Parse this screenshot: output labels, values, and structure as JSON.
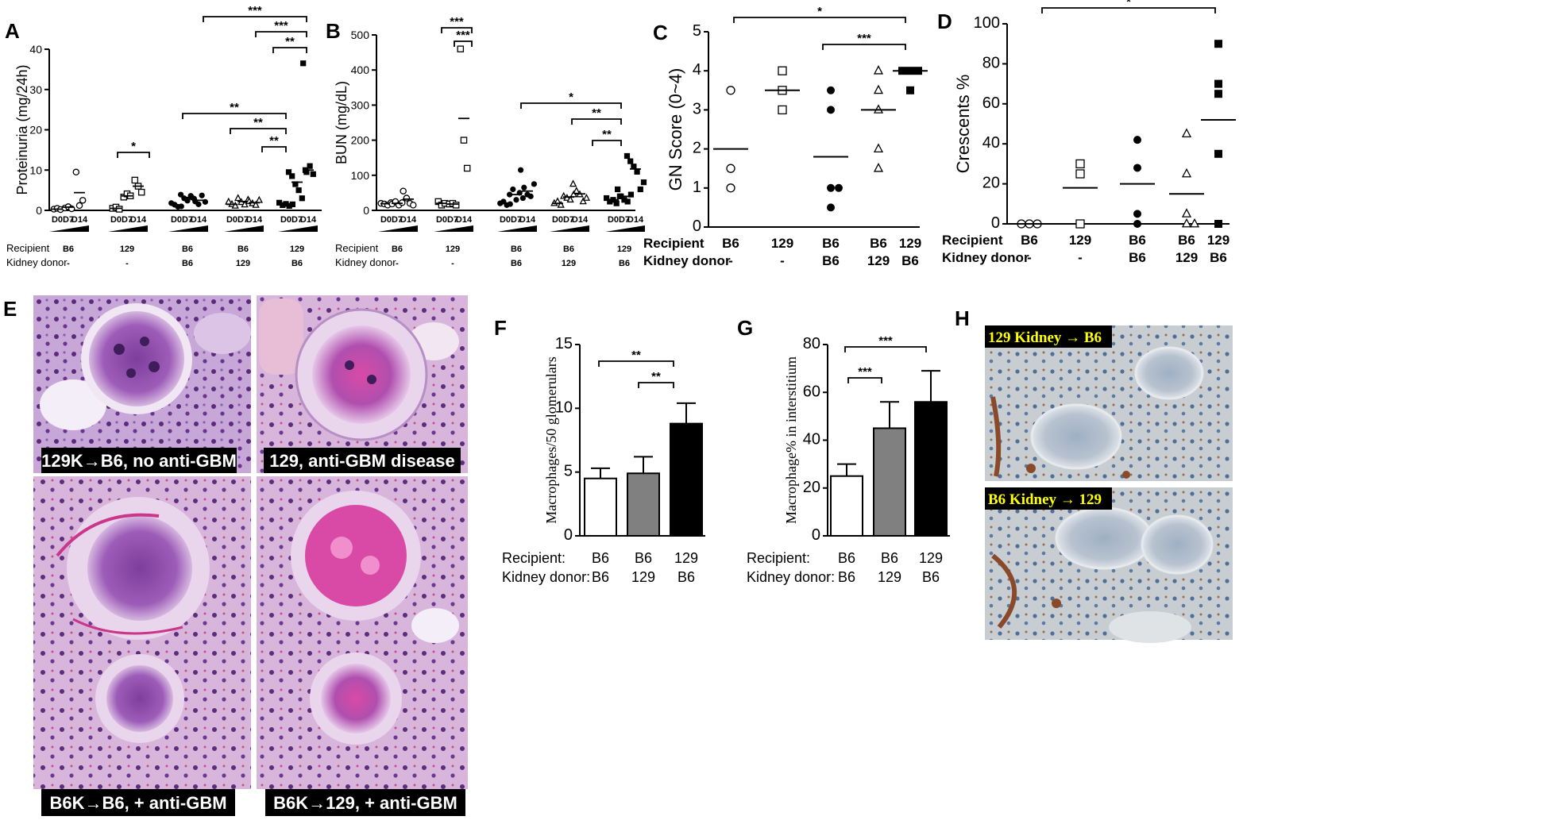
{
  "panel_labels": [
    "A",
    "B",
    "C",
    "D",
    "E",
    "F",
    "G",
    "H"
  ],
  "day_labels": [
    "D0",
    "D7",
    "D14"
  ],
  "row_labels": {
    "recipient": "Recipient",
    "donor": "Kidney donor",
    "recipient_colon": "Recipient:",
    "donor_colon": "Kidney donor:"
  },
  "groups_A_B": [
    {
      "recipient": "B6",
      "donor": "-"
    },
    {
      "recipient": "129",
      "donor": "-"
    },
    {
      "recipient": "B6",
      "donor": "B6"
    },
    {
      "recipient": "B6",
      "donor": "129"
    },
    {
      "recipient": "129",
      "donor": "B6"
    }
  ],
  "groups_C_D": [
    {
      "recipient": "B6",
      "donor": "-"
    },
    {
      "recipient": "129",
      "donor": "-"
    },
    {
      "recipient": "B6",
      "donor": "B6"
    },
    {
      "recipient": "B6",
      "donor": "129"
    },
    {
      "recipient": "129",
      "donor": "B6"
    }
  ],
  "groups_F_G": [
    {
      "recipient": "B6",
      "donor": "B6"
    },
    {
      "recipient": "B6",
      "donor": "129"
    },
    {
      "recipient": "129",
      "donor": "B6"
    }
  ],
  "sig": {
    "one": "*",
    "two": "**",
    "three": "***"
  },
  "histology_captions": [
    "129K→B6, no anti-GBM",
    "129, anti-GBM disease",
    "B6K→B6, + anti-GBM",
    "B6K→129, + anti-GBM"
  ],
  "ihc_captions": [
    "129 Kidney → B6",
    "B6 Kidney → 129"
  ],
  "chart_data": [
    {
      "panel": "A",
      "type": "scatter",
      "ylabel": "Proteinuria (mg/24h)",
      "ylim": [
        0,
        40
      ],
      "yticks": [
        0,
        10,
        20,
        30,
        40
      ],
      "points": [
        [
          [
            0.3,
            0.5,
            0.2
          ],
          [
            0.6,
            0.9,
            0.4
          ],
          [
            9.5,
            1.2,
            2.5
          ]
        ],
        [
          [
            0.5,
            0.8,
            0.3
          ],
          [
            3.3,
            4.1,
            3.6
          ],
          [
            7.5,
            6,
            4.5
          ]
        ],
        [
          [
            1.8,
            1.4,
            0.9,
            1.0
          ],
          [
            3.9,
            3.0,
            2.4,
            3.6,
            2.9
          ],
          [
            3.2,
            2.2,
            1.5,
            3.7,
            2.1
          ]
        ],
        [
          [
            2.1,
            1.5,
            1.1
          ],
          [
            3.0,
            2.0,
            1.4,
            2.6
          ],
          [
            2.2,
            1.7,
            1.3,
            2.5
          ]
        ],
        [
          [
            1.9,
            1.3,
            1.6,
            1.1,
            1.5
          ],
          [
            9.5,
            8.5,
            6.5,
            5.0,
            3.0,
            10.0
          ],
          [
            36.5,
            9.5,
            11.0,
            9.0
          ]
        ]
      ],
      "means": [
        [
          0.3,
          0.8,
          4.4
        ],
        [
          0.5,
          3.6,
          6.0
        ],
        [
          1.3,
          3.2,
          2.5
        ],
        [
          1.5,
          2.2,
          1.9
        ],
        [
          1.5,
          7.0,
          10.0
        ]
      ]
    },
    {
      "panel": "B",
      "type": "scatter",
      "ylabel": "BUN (mg/dL)",
      "ylim": [
        0,
        500
      ],
      "yticks": [
        0,
        100,
        200,
        300,
        400,
        500
      ],
      "points": [
        [
          [
            20,
            18,
            15,
            22
          ],
          [
            18,
            25,
            15,
            22
          ],
          [
            55,
            35,
            20,
            15
          ]
        ],
        [
          [
            25,
            15,
            20
          ],
          [
            18,
            20,
            15
          ],
          [
            460,
            200,
            120
          ]
        ],
        [
          [
            20,
            25,
            15,
            18
          ],
          [
            45,
            60,
            30,
            50,
            35
          ],
          [
            115,
            65,
            45,
            40,
            75
          ]
        ],
        [
          [
            20,
            25,
            15
          ],
          [
            40,
            35,
            30,
            45
          ],
          [
            75,
            55,
            45,
            25,
            35
          ]
        ],
        [
          [
            35,
            25,
            30,
            20,
            40
          ],
          [
            60,
            40,
            30,
            25,
            45
          ],
          [
            155,
            140,
            125,
            110,
            60,
            80
          ]
        ]
      ],
      "means": [
        [
          19,
          20,
          32
        ],
        [
          20,
          18,
          262
        ],
        [
          20,
          45,
          55
        ],
        [
          20,
          38,
          47
        ],
        [
          30,
          40,
          118
        ]
      ]
    },
    {
      "panel": "C",
      "type": "scatter",
      "ylabel": "GN Score (0~4)",
      "ylim": [
        0,
        5
      ],
      "yticks": [
        0,
        1,
        2,
        3,
        4,
        5
      ],
      "points": [
        [
          3.5,
          1.5,
          1.0
        ],
        [
          4.0,
          3.5,
          3.0
        ],
        [
          3.5,
          3.0,
          1.0,
          1.0,
          0.5
        ],
        [
          4.0,
          3.5,
          3.0,
          2.0,
          1.5
        ],
        [
          4.0,
          4.0,
          4.0,
          3.5
        ]
      ],
      "means": [
        2.0,
        3.5,
        1.8,
        3.0,
        4.0
      ]
    },
    {
      "panel": "D",
      "type": "scatter",
      "ylabel": "Crescents %",
      "ylim": [
        0,
        100
      ],
      "yticks": [
        0,
        20,
        40,
        60,
        80,
        100
      ],
      "points": [
        [
          0,
          0,
          0
        ],
        [
          30,
          25,
          0
        ],
        [
          42,
          28,
          5,
          0
        ],
        [
          45,
          25,
          5,
          0,
          0
        ],
        [
          90,
          70,
          65,
          35,
          0
        ]
      ],
      "means": [
        0,
        18,
        20,
        15,
        52
      ]
    },
    {
      "panel": "F",
      "type": "bar",
      "ylabel": "Macrophages/50 glomerulars",
      "ylim": [
        0,
        15
      ],
      "yticks": [
        0,
        5,
        10,
        15
      ],
      "values": [
        4.5,
        4.9,
        8.8
      ],
      "errors": [
        0.8,
        1.3,
        1.6
      ],
      "colors": [
        "#ffffff",
        "#808080",
        "#000000"
      ]
    },
    {
      "panel": "G",
      "type": "bar",
      "ylabel": "Macrophage% in interstitium",
      "ylim": [
        0,
        80
      ],
      "yticks": [
        0,
        20,
        40,
        60,
        80
      ],
      "values": [
        25,
        45,
        56
      ],
      "errors": [
        5,
        11,
        13
      ],
      "colors": [
        "#ffffff",
        "#808080",
        "#000000"
      ]
    }
  ]
}
